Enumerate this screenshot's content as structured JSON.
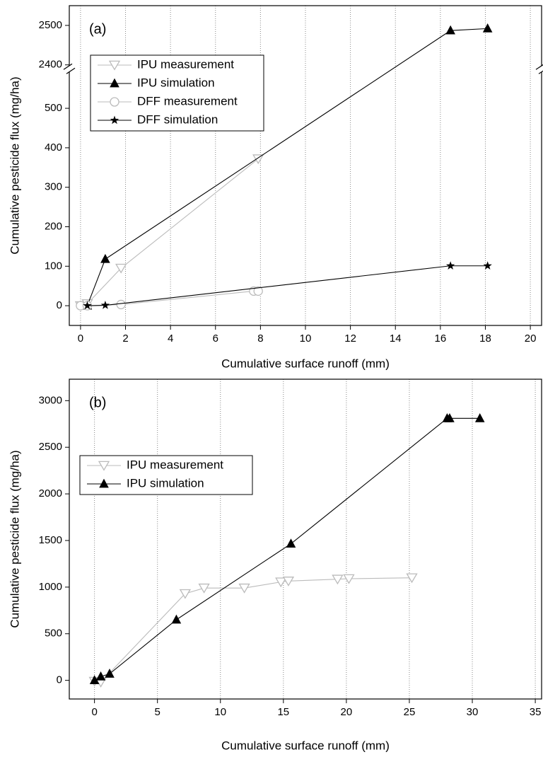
{
  "chart_data": [
    {
      "type": "line",
      "panel_label": "(a)",
      "x_label": "Cumulative surface runoff (mm)",
      "y_label": "Cumulative pesticide flux (mg/ha)",
      "xlim": [
        -0.5,
        20.5
      ],
      "xticks": [
        0,
        2,
        4,
        6,
        8,
        10,
        12,
        14,
        16,
        18,
        20
      ],
      "ylim": [
        -50,
        2550
      ],
      "ybreak": [
        600,
        2390
      ],
      "yticks": [
        0,
        100,
        200,
        300,
        400,
        500,
        2400,
        2500
      ],
      "grid": "x",
      "legend": "upper left",
      "series": [
        {
          "name": "IPU measurement",
          "color": "#bbbbbb",
          "marker": "triangle-down",
          "x": [
            0,
            0.3,
            1.8,
            7.9
          ],
          "values": [
            0,
            5,
            95,
            372
          ]
        },
        {
          "name": "IPU simulation",
          "color": "#000000",
          "marker": "triangle",
          "x": [
            0.3,
            1.1,
            16.45,
            18.1
          ],
          "values": [
            0,
            118,
            2487,
            2492
          ]
        },
        {
          "name": "DFF measurement",
          "color": "#bbbbbb",
          "marker": "circle",
          "x": [
            0,
            0.3,
            1.8,
            7.7,
            7.9
          ],
          "values": [
            0,
            0,
            3,
            37,
            37
          ]
        },
        {
          "name": "DFF simulation",
          "color": "#000000",
          "marker": "star",
          "x": [
            0.3,
            1.1,
            16.45,
            18.1
          ],
          "values": [
            0,
            1,
            101,
            101
          ]
        }
      ]
    },
    {
      "type": "line",
      "panel_label": "(b)",
      "x_label": "Cumulative surface runoff (mm)",
      "y_label": "Cumulative pesticide flux (mg/ha)",
      "xlim": [
        -2,
        35.5
      ],
      "xticks": [
        0,
        5,
        10,
        15,
        20,
        25,
        30,
        35
      ],
      "ylim": [
        -200,
        3230
      ],
      "yticks": [
        0,
        500,
        1000,
        1500,
        2000,
        2500,
        3000
      ],
      "grid": "x",
      "legend": "upper left",
      "series": [
        {
          "name": "IPU measurement",
          "color": "#bbbbbb",
          "marker": "triangle-down",
          "x": [
            0,
            0.5,
            7.2,
            8.7,
            11.9,
            14.8,
            15.4,
            19.3,
            20.2,
            25.2
          ],
          "values": [
            -10,
            -20,
            930,
            990,
            990,
            1055,
            1065,
            1085,
            1090,
            1100
          ]
        },
        {
          "name": "IPU simulation",
          "color": "#000000",
          "marker": "triangle",
          "x": [
            0,
            0.5,
            1.2,
            6.5,
            15.6,
            28,
            28.2,
            30.6
          ],
          "values": [
            0,
            40,
            70,
            650,
            1465,
            2810,
            2810,
            2810
          ]
        }
      ]
    }
  ]
}
